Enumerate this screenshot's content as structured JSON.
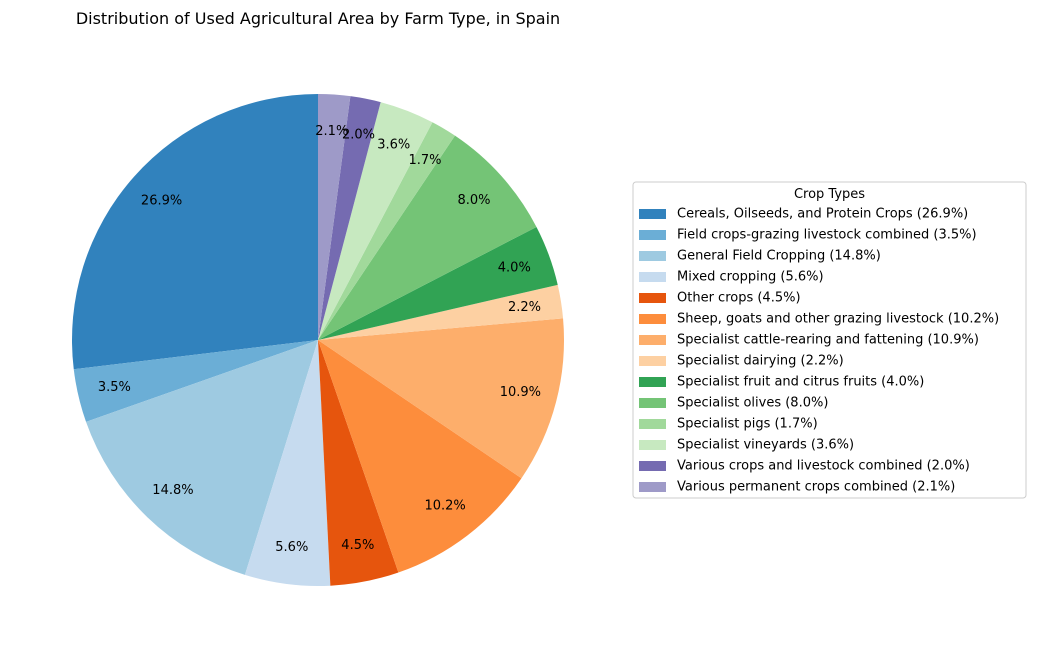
{
  "chart_data": {
    "type": "pie",
    "title": "Distribution of Used Agricultural Area by Farm Type, in Spain",
    "legend_title": "Crop Types",
    "legend_position": "right",
    "start_angle_deg": 90,
    "direction": "counterclockwise",
    "slices": [
      {
        "label": "Cereals, Oilseeds, and Protein Crops (26.9%)",
        "value": 26.9,
        "pct_label": "26.9%",
        "color": "#3182bd"
      },
      {
        "label": "Field crops-grazing livestock combined (3.5%)",
        "value": 3.5,
        "pct_label": "3.5%",
        "color": "#6baed6"
      },
      {
        "label": "General Field Cropping (14.8%)",
        "value": 14.8,
        "pct_label": "14.8%",
        "color": "#9ecae1"
      },
      {
        "label": "Mixed cropping (5.6%)",
        "value": 5.6,
        "pct_label": "5.6%",
        "color": "#c6dbef"
      },
      {
        "label": "Other crops (4.5%)",
        "value": 4.5,
        "pct_label": "4.5%",
        "color": "#e6550d"
      },
      {
        "label": "Sheep, goats and other grazing livestock (10.2%)",
        "value": 10.2,
        "pct_label": "10.2%",
        "color": "#fd8d3c"
      },
      {
        "label": "Specialist cattle-rearing and fattening (10.9%)",
        "value": 10.9,
        "pct_label": "10.9%",
        "color": "#fdae6b"
      },
      {
        "label": "Specialist dairying (2.2%)",
        "value": 2.2,
        "pct_label": "2.2%",
        "color": "#fdd0a2"
      },
      {
        "label": "Specialist fruit and citrus fruits (4.0%)",
        "value": 4.0,
        "pct_label": "4.0%",
        "color": "#31a354"
      },
      {
        "label": "Specialist olives (8.0%)",
        "value": 8.0,
        "pct_label": "8.0%",
        "color": "#74c476"
      },
      {
        "label": "Specialist pigs (1.7%)",
        "value": 1.7,
        "pct_label": "1.7%",
        "color": "#a1d99b"
      },
      {
        "label": "Specialist vineyards (3.6%)",
        "value": 3.6,
        "pct_label": "3.6%",
        "color": "#c7e9c0"
      },
      {
        "label": "Various crops and livestock combined (2.0%)",
        "value": 2.0,
        "pct_label": "2.0%",
        "color": "#756bb1"
      },
      {
        "label": "Various permanent crops combined (2.1%)",
        "value": 2.1,
        "pct_label": "2.1%",
        "color": "#9e9ac8"
      }
    ]
  }
}
